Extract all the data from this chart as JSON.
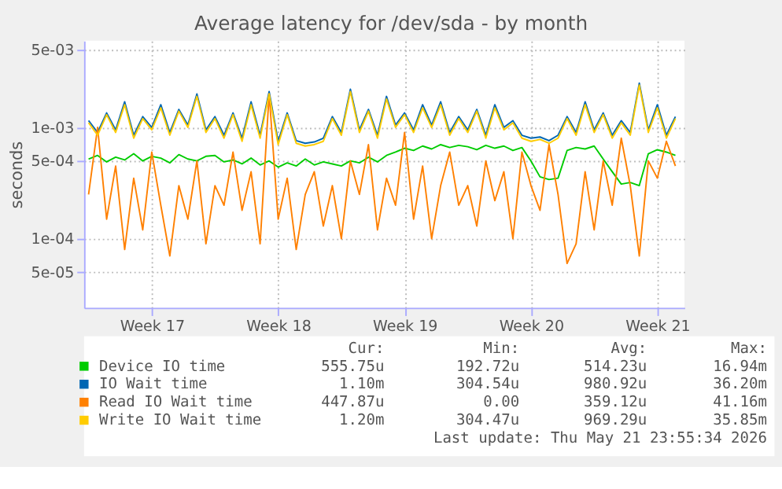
{
  "chart_data": {
    "type": "line",
    "title": "Average latency for /dev/sda - by month",
    "ylabel": "seconds",
    "log": "y",
    "grid": true,
    "legend": "bottom",
    "xlim": [
      "2026-04-19T18:00",
      "2026-05-23T00:00"
    ],
    "xticks": [
      {
        "value": "2026-04-23T12:00",
        "label": "Week 17"
      },
      {
        "value": "2026-04-30T12:00",
        "label": "Week 18"
      },
      {
        "value": "2026-05-07T12:00",
        "label": "Week 19"
      },
      {
        "value": "2026-05-14T12:00",
        "label": "Week 20"
      },
      {
        "value": "2026-05-21T12:00",
        "label": "Week 21"
      }
    ],
    "ylim": [
      2.4e-05,
      0.006
    ],
    "yticks": [
      {
        "value": 5e-05,
        "label": "5e-05"
      },
      {
        "value": 0.0001,
        "label": "1e-04"
      },
      {
        "value": 0.0005,
        "label": "5e-04"
      },
      {
        "value": 0.001,
        "label": "1e-03"
      },
      {
        "value": 0.005,
        "label": "5e-03"
      }
    ],
    "x": [
      "2026-04-20T00:00",
      "2026-04-20T12:00",
      "2026-04-21T00:00",
      "2026-04-21T12:00",
      "2026-04-22T00:00",
      "2026-04-22T12:00",
      "2026-04-23T00:00",
      "2026-04-23T12:00",
      "2026-04-24T00:00",
      "2026-04-24T12:00",
      "2026-04-25T00:00",
      "2026-04-25T12:00",
      "2026-04-26T00:00",
      "2026-04-26T12:00",
      "2026-04-27T00:00",
      "2026-04-27T12:00",
      "2026-04-28T00:00",
      "2026-04-28T12:00",
      "2026-04-29T00:00",
      "2026-04-29T12:00",
      "2026-04-30T00:00",
      "2026-04-30T12:00",
      "2026-05-01T00:00",
      "2026-05-01T12:00",
      "2026-05-02T00:00",
      "2026-05-02T12:00",
      "2026-05-03T00:00",
      "2026-05-03T12:00",
      "2026-05-04T00:00",
      "2026-05-04T12:00",
      "2026-05-05T00:00",
      "2026-05-05T12:00",
      "2026-05-06T00:00",
      "2026-05-06T12:00",
      "2026-05-07T00:00",
      "2026-05-07T12:00",
      "2026-05-08T00:00",
      "2026-05-08T12:00",
      "2026-05-09T00:00",
      "2026-05-09T12:00",
      "2026-05-10T00:00",
      "2026-05-10T12:00",
      "2026-05-11T00:00",
      "2026-05-11T12:00",
      "2026-05-12T00:00",
      "2026-05-12T12:00",
      "2026-05-13T00:00",
      "2026-05-13T12:00",
      "2026-05-14T00:00",
      "2026-05-14T12:00",
      "2026-05-15T00:00",
      "2026-05-15T12:00",
      "2026-05-16T00:00",
      "2026-05-16T12:00",
      "2026-05-17T00:00",
      "2026-05-17T12:00",
      "2026-05-18T00:00",
      "2026-05-18T12:00",
      "2026-05-19T00:00",
      "2026-05-19T12:00",
      "2026-05-20T00:00",
      "2026-05-20T12:00",
      "2026-05-21T00:00",
      "2026-05-21T12:00",
      "2026-05-22T00:00",
      "2026-05-22T12:00"
    ],
    "series": [
      {
        "name": "Device IO time",
        "color": "#00cc00",
        "values": [
          0.00052,
          0.00056,
          0.00049,
          0.00054,
          0.00051,
          0.00058,
          0.0005,
          0.00055,
          0.00053,
          0.00048,
          0.00057,
          0.00052,
          0.0005,
          0.00055,
          0.00056,
          0.00049,
          0.00051,
          0.00047,
          0.00053,
          0.00046,
          0.0005,
          0.00044,
          0.00048,
          0.00045,
          0.00052,
          0.00046,
          0.00049,
          0.00047,
          0.00045,
          0.0005,
          0.00048,
          0.00054,
          0.00049,
          0.00056,
          0.0006,
          0.00065,
          0.00062,
          0.00068,
          0.00064,
          0.0007,
          0.00066,
          0.00069,
          0.00067,
          0.00063,
          0.00069,
          0.00065,
          0.00068,
          0.00062,
          0.00066,
          0.0005,
          0.00036,
          0.00034,
          0.00035,
          0.00062,
          0.00066,
          0.00064,
          0.00068,
          0.00052,
          0.0004,
          0.00031,
          0.00032,
          0.0003,
          0.00058,
          0.00063,
          0.0006,
          0.00056
        ]
      },
      {
        "name": "IO Wait time",
        "color": "#0066b3",
        "values": [
          0.00115,
          0.0009,
          0.00135,
          0.00095,
          0.0017,
          0.00085,
          0.00125,
          0.001,
          0.0016,
          0.0009,
          0.00145,
          0.00105,
          0.002,
          0.00095,
          0.00125,
          0.00085,
          0.00135,
          0.0008,
          0.0017,
          0.00085,
          0.0021,
          0.00075,
          0.00135,
          0.00076,
          0.00072,
          0.00074,
          0.0008,
          0.00125,
          0.0009,
          0.0022,
          0.00095,
          0.00145,
          0.00085,
          0.0019,
          0.00105,
          0.00135,
          0.00095,
          0.0016,
          0.00105,
          0.0017,
          0.0009,
          0.00125,
          0.00095,
          0.00145,
          0.00085,
          0.0016,
          0.001,
          0.00115,
          0.00085,
          0.0008,
          0.00082,
          0.00076,
          0.00085,
          0.00125,
          0.0009,
          0.0017,
          0.00095,
          0.00135,
          0.00085,
          0.00115,
          0.0009,
          0.0025,
          0.00095,
          0.0016,
          0.00085,
          0.00125
        ]
      },
      {
        "name": "Read IO Wait time",
        "color": "#ff8000",
        "values": [
          0.00025,
          0.001,
          0.00015,
          0.00045,
          8e-05,
          0.00035,
          0.00012,
          0.0006,
          0.0002,
          7e-05,
          0.0003,
          0.00015,
          0.0005,
          9e-05,
          0.0003,
          0.0002,
          0.0006,
          0.00018,
          0.0004,
          9e-05,
          0.002,
          0.00015,
          0.00035,
          8e-05,
          0.00025,
          0.0004,
          0.00013,
          0.0003,
          0.0001,
          0.0005,
          0.00025,
          0.0007,
          0.00012,
          0.00035,
          0.0002,
          0.0009,
          0.00015,
          0.00045,
          0.0001,
          0.0003,
          0.0006,
          0.0002,
          0.0003,
          0.00013,
          0.0005,
          0.00022,
          0.0004,
          0.0001,
          0.0006,
          0.0003,
          0.00018,
          0.0007,
          0.00025,
          6e-05,
          9e-05,
          0.0004,
          0.00012,
          0.0005,
          0.0002,
          0.0008,
          0.0003,
          7e-05,
          0.0005,
          0.00035,
          0.00075,
          0.00045
        ]
      },
      {
        "name": "Write IO Wait time",
        "color": "#ffcc00",
        "values": [
          0.0011,
          0.00085,
          0.0013,
          0.0009,
          0.0016,
          0.0008,
          0.0012,
          0.00095,
          0.0015,
          0.00085,
          0.0014,
          0.001,
          0.0019,
          0.0009,
          0.0012,
          0.0008,
          0.0013,
          0.00075,
          0.0016,
          0.0008,
          0.002,
          0.0007,
          0.0013,
          0.00072,
          0.00068,
          0.0007,
          0.00075,
          0.0012,
          0.00085,
          0.0021,
          0.0009,
          0.0014,
          0.0008,
          0.0018,
          0.001,
          0.0013,
          0.0009,
          0.0015,
          0.001,
          0.0016,
          0.00085,
          0.0012,
          0.0009,
          0.0014,
          0.0008,
          0.0015,
          0.00095,
          0.0011,
          0.0008,
          0.00075,
          0.00078,
          0.00072,
          0.0008,
          0.0012,
          0.00085,
          0.0016,
          0.0009,
          0.0013,
          0.0008,
          0.0011,
          0.00085,
          0.0024,
          0.0009,
          0.0015,
          0.0008,
          0.0012
        ]
      }
    ],
    "annotations": [
      "Cur:",
      "Min:",
      "Avg:",
      "Max:",
      "555.75u",
      "192.72u",
      "514.23u",
      "16.94m",
      "1.10m",
      "304.54u",
      "980.92u",
      "36.20m",
      "447.87u",
      "0.00",
      "359.12u",
      "41.16m",
      "1.20m",
      "304.47u",
      "969.29u",
      "35.85m",
      "Last update: Thu May 21 23:55:34 2026"
    ]
  }
}
